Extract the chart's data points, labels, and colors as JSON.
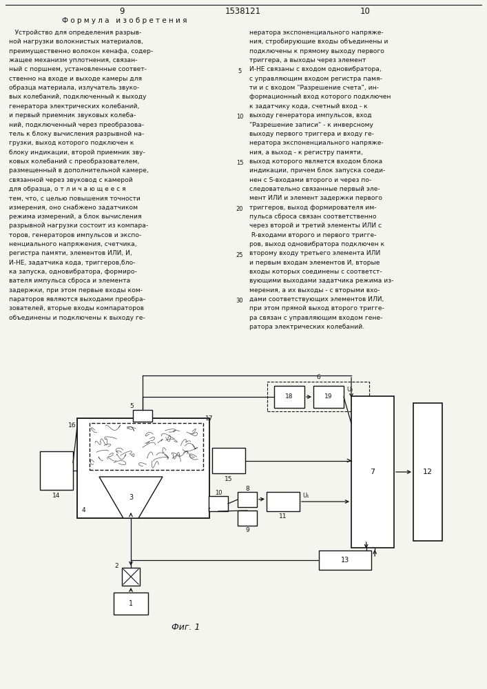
{
  "title": "1538121",
  "page_left": "9",
  "page_right": "10",
  "formula_title": "Ф о р м у л а   и з о б р е т е н и я",
  "fig_label": "Фиг. 1",
  "text_left": "   Устройство для определения разрыв-\nной нагрузки волокнистых материалов,\nпреимущественно волокон кенафа, содер-\nжащее механизм уплотнения, связан-\nный с поршнем, установленные соответ-\nственно на входе и выходе камеры для\nобразца материала, излучатель звуко-\nвых колебаний, подключенный к выходу\nгенератора электрических колебаний,\nи первый приемник звуковых колеба-\nний, подключенный через преобразова-\nтель к блоку вычисления разрывной на-\nгрузки, выход которого подключен к\nблоку индикации, второй приемник зву-\nковых колебаний с преобразователем,\nразмещенный в дополнительной камере,\nсвязанной через звуковод с камерой\nдля образца, о т л и ч а ю щ е е с я\nтем, что, с целью повышения точности\nизмерения, оно снабжено задатчиком\nрежима измерений, а блок вычисления\nразрывной нагрузки состоит из компара-\nторов, генераторов импульсов и экспо-\nненциального напряжения, счетчика,\nрегистра памяти, элементов ИЛИ, И,\nИ-НЕ, задатчика кода, триггеров,бло-\nка запуска, одновибратора, формиро-\nвателя импульса сброса и элемента\nзадержки, при этом первые входы ком-\nпараторов являются выходами преобра-\nзователей, вторые входы компараторов\nобъединены и подключены к выходу ге-",
  "text_right": "нератора экспоненциального напряже-\nния, стробирующие входы объединены и\nподключены к прямому выходу первого\nтриггера, а выходы через элемент\nИ-НЕ связаны с входом одновибратора,\nс управляющим входом регистра памя-\nти и с входом \"Разрешение счета\", ин-\nформационный вход которого подключен\nк задатчику кода, счетный вход - к\nвыходу генератора импульсов, вход\n\"Разрешение записи\" - к инверсному\nвыходу первого триггера и входу ге-\nнератора экспоненциального напряже-\nния, а выход - к регистру памяти,\nвыход которого является входом блока\nиндикации, причем блок запуска соеди-\nнен с S-входами второго и через по-\nследовательно связанные первый эле-\nмент ИЛИ и элемент задержки первого\nтриггеров, выход формирователя им-\nпульса сброса связан соответственно\nчерез второй и третий элементы ИЛИ с\n R-входами второго и первого тригге-\nров, выход одновибратора подключен к\nвторому входу третьего элемента ИЛИ\nи первым входам элементов И, вторые\nвходы которых соединены с соответст-\nвующими выходами задатчика режима из-\nмерения, а их выходы - с вторыми вхо-\nдами соответствующих элементов ИЛИ,\nпри этом прямой выход второго тригге-\nра связан с управляющим входом гене-\nратора электрических колебаний.",
  "bg_color": "#f5f5f0",
  "text_color": "#111111",
  "line_color": "#111111"
}
